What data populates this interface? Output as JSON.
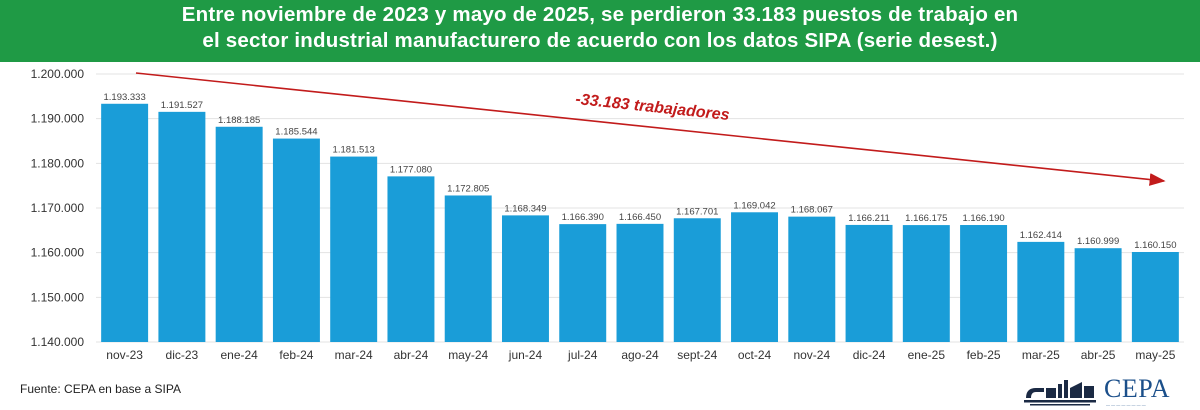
{
  "header": {
    "title_line1": "Entre noviembre de 2023 y mayo de 2025, se perdieron 33.183 puestos de trabajo en",
    "title_line2": "el sector industrial manufacturero de acuerdo con los datos SIPA (serie desest.)"
  },
  "source": "Fuente: CEPA en base a SIPA",
  "logos": {
    "right": "CEPA",
    "left": "csi"
  },
  "colors": {
    "banner": "#1f9a45",
    "bar": "#1a9dd8",
    "arrow": "#c21b1b",
    "grid": "#e3e3e3"
  },
  "chart_data": {
    "type": "bar",
    "categories": [
      "nov-23",
      "dic-23",
      "ene-24",
      "feb-24",
      "mar-24",
      "abr-24",
      "may-24",
      "jun-24",
      "jul-24",
      "ago-24",
      "sept-24",
      "oct-24",
      "nov-24",
      "dic-24",
      "ene-25",
      "feb-25",
      "mar-25",
      "abr-25",
      "may-25"
    ],
    "values": [
      1193333,
      1191527,
      1188185,
      1185544,
      1181513,
      1177080,
      1172805,
      1168349,
      1166390,
      1166450,
      1167701,
      1169042,
      1168067,
      1166211,
      1166175,
      1166190,
      1162414,
      1160999,
      1160150
    ],
    "value_labels": [
      "1.193.333",
      "1.191.527",
      "1.188.185",
      "1.185.544",
      "1.181.513",
      "1.177.080",
      "1.172.805",
      "1.168.349",
      "1.166.390",
      "1.166.450",
      "1.167.701",
      "1.169.042",
      "1.168.067",
      "1.166.211",
      "1.166.175",
      "1.166.190",
      "1.162.414",
      "1.160.999",
      "1.160.150"
    ],
    "ylim": [
      1140000,
      1200000
    ],
    "yticks": [
      1140000,
      1150000,
      1160000,
      1170000,
      1180000,
      1190000,
      1200000
    ],
    "ytick_labels": [
      "1.140.000",
      "1.150.000",
      "1.160.000",
      "1.170.000",
      "1.180.000",
      "1.190.000",
      "1.200.000"
    ],
    "annotation": "-33.183 trabajadores",
    "grid": true,
    "legend": false
  }
}
